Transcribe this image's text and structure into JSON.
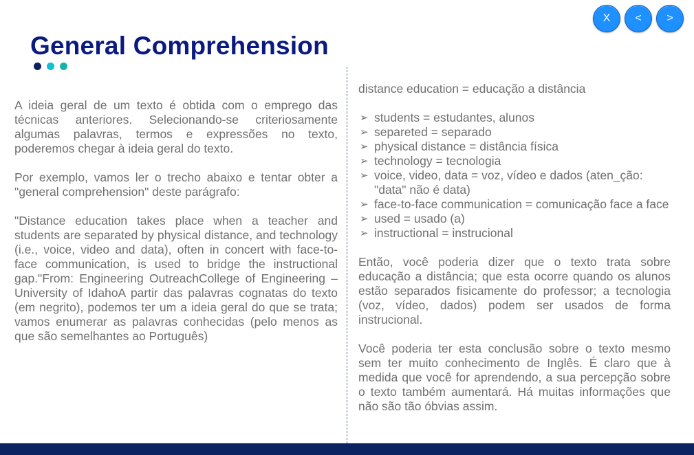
{
  "nav": {
    "close_label": "X",
    "prev_label": "<",
    "next_label": ">"
  },
  "header": {
    "title": "General Comprehension"
  },
  "left": {
    "p1": "A ideia geral de um texto é obtida com o emprego das técnicas anteriores. Selecionando-se criteriosamente algumas palavras, termos e expressões no texto, poderemos chegar à ideia geral do texto.",
    "p2": "Por exemplo, vamos ler o trecho abaixo e tentar obter a \"general comprehension\" deste parágrafo:",
    "p3": "\"Distance education takes place when a teacher and students are separated by physical distance, and technology (i.e., voice, video and data), often in concert with face-to-face communication, is used to bridge the instructional gap.\"From: Engineering OutreachCollege of Engineering – University of IdahoA partir das palavras cognatas do texto (em negrito), podemos ter um a ideia geral do que se trata; vamos enumerar as palavras conhecidas (pelo menos as que são semelhantes ao Português)"
  },
  "right": {
    "intro": "distance education = educação a distância",
    "items": [
      "students = estudantes, alunos",
      "separeted = separado",
      "physical distance = distância física",
      "technology = tecnologia",
      "voice, video, data = voz, vídeo e dados (aten_ção: \"data\" não é data)",
      "face-to-face communication = comunicação face a face",
      "used = usado (a)",
      "instructional = instrucional"
    ],
    "p1": "Então, você poderia dizer que o texto trata sobre educação a distância; que esta ocorre quando os alunos estão separados fisicamente do professor; a tecnologia (voz, vídeo, dados) podem ser usados de forma instrucional.",
    "p2": "Você poderia ter esta conclusão sobre o texto mesmo sem ter muito conhecimento de Inglês. É claro que à medida que você for aprendendo, a sua percepção sobre o texto também aumentará. Há muitas informações que não são tão óbvias assim."
  },
  "icons": {
    "bullet": "arrowhead-bullet-icon"
  },
  "colors": {
    "title": "#0b1a80",
    "nav_button": "#1e90ff",
    "body_text": "#707070",
    "footer_bar": "#0b2461",
    "dot_1": "#0c2060",
    "dot_2": "#12c0cf",
    "dot_3": "#1ab2a8"
  }
}
